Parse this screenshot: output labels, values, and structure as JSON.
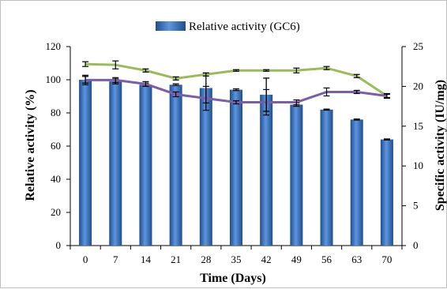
{
  "chart_data": {
    "type": "bar",
    "categories": [
      "0",
      "7",
      "14",
      "21",
      "28",
      "35",
      "42",
      "49",
      "56",
      "63",
      "70"
    ],
    "series": [
      {
        "name": "Relative activity (GC6)",
        "kind": "bar",
        "axis": "left",
        "color": "#3b73c4",
        "values": [
          100,
          99,
          97,
          97,
          95,
          94,
          91,
          85,
          82,
          76,
          64
        ],
        "errors": [
          2,
          1.5,
          1,
          0.5,
          9,
          0.5,
          10,
          1,
          0.3,
          0.3,
          0.3
        ]
      },
      {
        "name": "",
        "kind": "line",
        "axis": "right",
        "color": "#9bbb59",
        "values": [
          22.8,
          22.7,
          22.0,
          21.0,
          21.5,
          22.0,
          22.0,
          22.0,
          22.3,
          21.3,
          18.8
        ],
        "errors": [
          0.3,
          0.5,
          0.2,
          0.2,
          0.2,
          0.1,
          0.1,
          0.3,
          0.2,
          0.2,
          0.2
        ]
      },
      {
        "name": "",
        "kind": "line",
        "axis": "right",
        "color": "#7b5ea7",
        "values": [
          20.8,
          20.8,
          20.3,
          19.0,
          18.5,
          18.0,
          18.0,
          18.0,
          19.3,
          19.3,
          18.8
        ],
        "errors": [
          0.6,
          0.3,
          0.3,
          0.3,
          1.5,
          0.2,
          1.6,
          0.3,
          0.5,
          0.2,
          0.3
        ]
      }
    ],
    "xlabel": "Time (Days)",
    "ylabel": "Relative activity (%)",
    "y2label": "Specific activity (IU/mg)",
    "ylim": [
      0,
      120
    ],
    "y2lim": [
      0,
      25
    ],
    "yticks": [
      "0",
      "20",
      "40",
      "60",
      "80",
      "100",
      "120"
    ],
    "y2ticks": [
      "0",
      "5",
      "10",
      "15",
      "20",
      "25"
    ],
    "legend": {
      "position": "top",
      "entries": [
        "Relative activity (GC6)"
      ]
    },
    "grid": false
  }
}
